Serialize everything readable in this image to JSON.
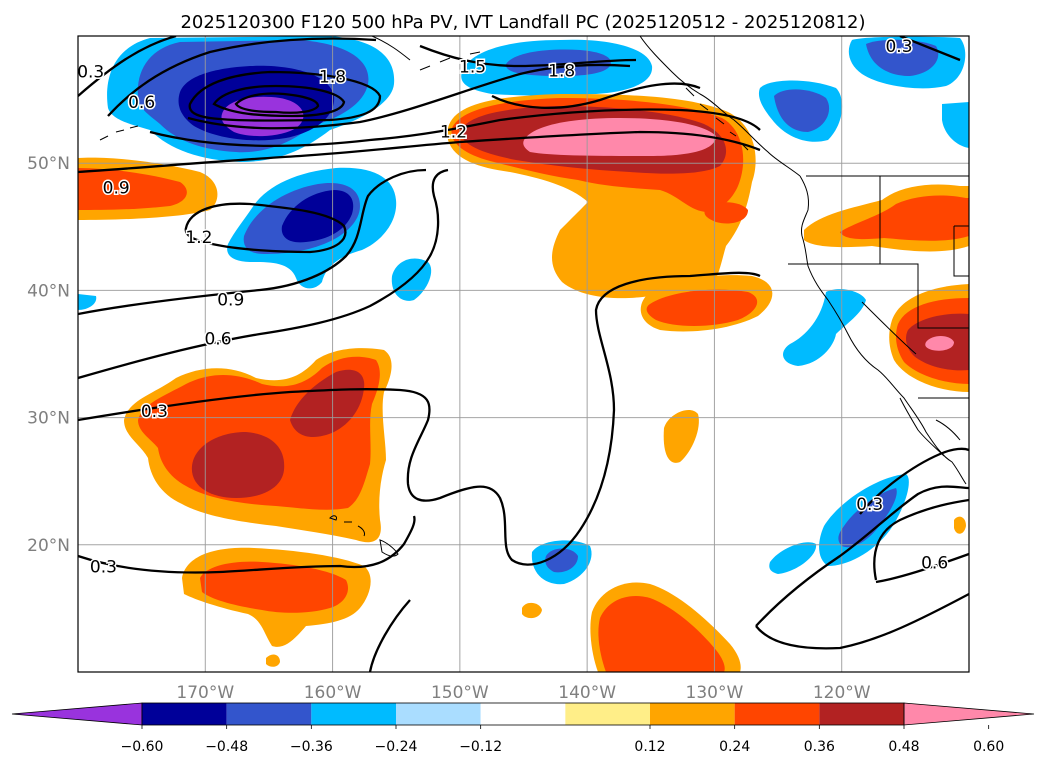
{
  "title": "2025120300 F120 500 hPa PV, IVT Landfall PC (2025120512 - 2025120812)",
  "map": {
    "lon_min": -180,
    "lon_max": -110,
    "lat_min": 10,
    "lat_max": 60,
    "lon_ticks": [
      {
        "value": -170,
        "label": "170°W"
      },
      {
        "value": -160,
        "label": "160°W"
      },
      {
        "value": -150,
        "label": "150°W"
      },
      {
        "value": -140,
        "label": "140°W"
      },
      {
        "value": -130,
        "label": "130°W"
      },
      {
        "value": -120,
        "label": "120°W"
      }
    ],
    "lat_ticks": [
      {
        "value": 20,
        "label": "20°N"
      },
      {
        "value": 30,
        "label": "30°N"
      },
      {
        "value": 40,
        "label": "40°N"
      },
      {
        "value": 50,
        "label": "50°N"
      }
    ],
    "grid": true
  },
  "colorbar": {
    "extend": "both",
    "colors": [
      "#9933dd",
      "#000099",
      "#3355cc",
      "#00bbff",
      "#aaddff",
      "#ffffff",
      "#ffee88",
      "#ffa500",
      "#ff4500",
      "#b22222",
      "#ff88aa"
    ],
    "ticks": [
      "−0.60",
      "−0.48",
      "−0.36",
      "−0.24",
      "−0.12",
      "0.12",
      "0.24",
      "0.36",
      "0.48",
      "0.60"
    ]
  },
  "contour_labels": [
    {
      "text": "0.3",
      "lon": -179,
      "lat": 57.2
    },
    {
      "text": "0.6",
      "lon": -175,
      "lat": 54.8
    },
    {
      "text": "1.8",
      "lon": -160,
      "lat": 56.8
    },
    {
      "text": "1.5",
      "lon": -149,
      "lat": 57.6
    },
    {
      "text": "1.8",
      "lon": -142,
      "lat": 57.3
    },
    {
      "text": "1.2",
      "lon": -150.5,
      "lat": 52.5
    },
    {
      "text": "0.3",
      "lon": -115.5,
      "lat": 59.2
    },
    {
      "text": "0.9",
      "lon": -177,
      "lat": 48.1
    },
    {
      "text": "1.2",
      "lon": -170.5,
      "lat": 44.2
    },
    {
      "text": "0.9",
      "lon": -168,
      "lat": 39.3
    },
    {
      "text": "0.6",
      "lon": -169,
      "lat": 36.2
    },
    {
      "text": "0.3",
      "lon": -174,
      "lat": 30.5
    },
    {
      "text": "0.3",
      "lon": -178,
      "lat": 18.3
    },
    {
      "text": "0.3",
      "lon": -117.8,
      "lat": 23.2
    },
    {
      "text": "0.6",
      "lon": -112.7,
      "lat": 18.6
    }
  ]
}
